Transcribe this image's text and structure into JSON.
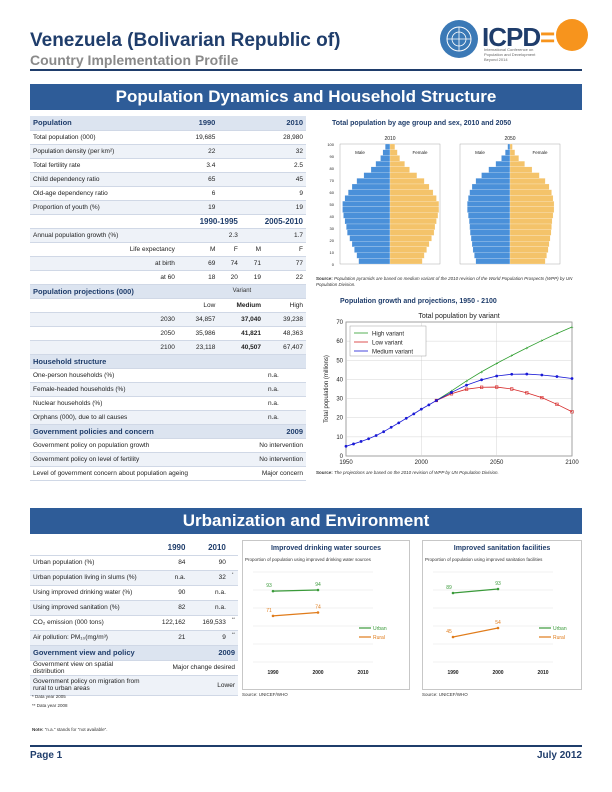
{
  "header": {
    "title": "Venezuela (Bolivarian Republic of)",
    "subtitle": "Country Implementation Profile",
    "logo_text": "ICPD",
    "logo_eq": "=",
    "logo_sub": "International Conference on Population and Development Beyond 2014"
  },
  "section1": {
    "title": "Population Dynamics and Household Structure"
  },
  "section2": {
    "title": "Urbanization and Environment"
  },
  "population": {
    "header": "Population",
    "col1": "1990",
    "col2": "2010",
    "rows": [
      {
        "label": "Total population (000)",
        "v1": "19,685",
        "v2": "28,980"
      },
      {
        "label": "Population density (per km²)",
        "v1": "22",
        "v2": "32"
      },
      {
        "label": "Total fertility rate",
        "v1": "3.4",
        "v2": "2.5"
      },
      {
        "label": "Child dependency ratio",
        "v1": "65",
        "v2": "45"
      },
      {
        "label": "Old-age dependency ratio",
        "v1": "6",
        "v2": "9"
      },
      {
        "label": "Proportion of youth (%)",
        "v1": "19",
        "v2": "19"
      }
    ],
    "period1": "1990-1995",
    "period2": "2005-2010",
    "growth_label": "Annual population growth (%)",
    "growth_v1": "2.3",
    "growth_v2": "1.7",
    "le_label": "Life expectancy",
    "le_m": "M",
    "le_f": "F",
    "le_rows": [
      {
        "label": "at birth",
        "v": [
          "69",
          "74",
          "71",
          "77"
        ]
      },
      {
        "label": "at 60",
        "v": [
          "18",
          "20",
          "19",
          "22"
        ]
      }
    ]
  },
  "projections": {
    "header": "Population projections (000)",
    "variant": "Variant",
    "low": "Low",
    "medium": "Medium",
    "high": "High",
    "rows": [
      {
        "year": "2030",
        "low": "34,857",
        "medium": "37,040",
        "high": "39,238"
      },
      {
        "year": "2050",
        "low": "35,986",
        "medium": "41,821",
        "high": "48,363"
      },
      {
        "year": "2100",
        "low": "23,118",
        "medium": "40,507",
        "high": "67,407"
      }
    ]
  },
  "household": {
    "header": "Household structure",
    "rows": [
      {
        "label": "One-person households (%)",
        "v": "n.a."
      },
      {
        "label": "Female-headed households (%)",
        "v": "n.a."
      },
      {
        "label": "Nuclear households (%)",
        "v": "n.a."
      },
      {
        "label": "Orphans (000), due to all causes",
        "v": "n.a."
      }
    ]
  },
  "policies": {
    "header": "Government policies and concern",
    "year": "2009",
    "rows": [
      {
        "label": "Government policy on population growth",
        "v": "No intervention"
      },
      {
        "label": "Government policy on level of fertility",
        "v": "No intervention"
      },
      {
        "label": "Level of government concern about population ageing",
        "v": "Major concern"
      }
    ]
  },
  "pyramid": {
    "title": "Total population by age group and sex, 2010 and 2050",
    "years": [
      "2010",
      "2050"
    ],
    "male": "Male",
    "female": "Female",
    "age_ticks": [
      "100",
      "90",
      "80",
      "70",
      "60",
      "50",
      "40",
      "30",
      "20",
      "10",
      "0"
    ],
    "source_bold": "Source:",
    "source": "Population pyramids are based on medium variant of the 2010 revision of the World Population Prospects (WPP) by UN Population Division."
  },
  "growth_chart": {
    "title": "Population growth and projections, 1950 - 2100",
    "subtitle": "Total population by variant",
    "ylabel": "Total population (millions)",
    "source_bold": "Source:",
    "source": "The projections are based on the 2010 revision of WPP by UN Population Division."
  },
  "chart_data": [
    {
      "type": "line",
      "title": "Population growth and projections, 1950 - 2100",
      "subtitle": "Total population by variant",
      "xlabel": "",
      "ylabel": "Total population (millions)",
      "xlim": [
        1950,
        2100
      ],
      "ylim": [
        0,
        70
      ],
      "xticks": [
        1950,
        2000,
        2050,
        2100
      ],
      "yticks": [
        0,
        10,
        20,
        30,
        40,
        50,
        60,
        70
      ],
      "legend": "top-left",
      "series": [
        {
          "name": "High variant",
          "color": "#2e9e2e",
          "x": [
            2010,
            2020,
            2030,
            2040,
            2050,
            2060,
            2070,
            2080,
            2090,
            2100
          ],
          "y": [
            29,
            34,
            39.2,
            44,
            48.4,
            52.5,
            56.5,
            60.3,
            64,
            67.4
          ]
        },
        {
          "name": "Low variant",
          "color": "#d62828",
          "x": [
            2010,
            2020,
            2030,
            2040,
            2050,
            2060,
            2070,
            2080,
            2090,
            2100
          ],
          "y": [
            29,
            32.5,
            34.9,
            35.9,
            36,
            35,
            33,
            30.5,
            27,
            23.1
          ]
        },
        {
          "name": "Medium variant",
          "color": "#1a1ad6",
          "x": [
            1950,
            1955,
            1960,
            1965,
            1970,
            1975,
            1980,
            1985,
            1990,
            1995,
            2000,
            2005,
            2010,
            2020,
            2030,
            2040,
            2050,
            2060,
            2070,
            2080,
            2090,
            2100
          ],
          "y": [
            5.1,
            6.3,
            7.6,
            9,
            10.7,
            12.7,
            15,
            17.3,
            19.7,
            22,
            24.5,
            26.7,
            29,
            33.2,
            37,
            39.8,
            41.8,
            42.7,
            42.8,
            42.3,
            41.5,
            40.5
          ]
        }
      ]
    },
    {
      "type": "line",
      "title": "Improved drinking water sources",
      "subtitle": "Proportion of population using improved drinking water sources",
      "xticks": [
        "1990",
        "2000",
        "2010"
      ],
      "legend": "right",
      "series": [
        {
          "name": "Urban",
          "color": "#3a9a3a",
          "x": [
            1990,
            2000
          ],
          "y": [
            93,
            94
          ]
        },
        {
          "name": "Rural",
          "color": "#e07b1a",
          "x": [
            1990,
            2000
          ],
          "y": [
            71,
            74
          ]
        }
      ]
    },
    {
      "type": "line",
      "title": "Improved sanitation facilities",
      "subtitle": "Proportion of population using improved sanitation facilities",
      "xticks": [
        "1990",
        "2000",
        "2010"
      ],
      "legend": "right",
      "series": [
        {
          "name": "Urban",
          "color": "#3a9a3a",
          "x": [
            1990,
            2000
          ],
          "y": [
            89,
            93
          ]
        },
        {
          "name": "Rural",
          "color": "#e07b1a",
          "x": [
            1990,
            2000
          ],
          "y": [
            45,
            54
          ]
        }
      ]
    }
  ],
  "water_chart": {
    "title": "Improved drinking water sources",
    "subtitle": "Proportion of population using improved drinking water sources",
    "source": "Source: UNICEF/WHO"
  },
  "sanitation_chart": {
    "title": "Improved sanitation facilities",
    "subtitle": "Proportion of population using improved sanitation facilities",
    "source": "Source: UNICEF/WHO"
  },
  "urban": {
    "col1": "1990",
    "col2": "2010",
    "rows": [
      {
        "label": "Urban population (%)",
        "v1": "84",
        "v2": "90",
        "note": ""
      },
      {
        "label": "Urban population living in slums (%)",
        "v1": "n.a.",
        "v2": "32",
        "note": "*"
      },
      {
        "label": "Using improved drinking water (%)",
        "v1": "90",
        "v2": "n.a.",
        "note": ""
      },
      {
        "label": "Using improved sanitation (%)",
        "v1": "82",
        "v2": "n.a.",
        "note": ""
      },
      {
        "label": "CO₂ emission (000 tons)",
        "v1": "122,162",
        "v2": "169,533",
        "note": "**"
      },
      {
        "label": "Air pollution: PM₁₀(mg/m³)",
        "v1": "21",
        "v2": "9",
        "note": "**"
      }
    ],
    "view_header": "Government view and policy",
    "view_year": "2009",
    "view_rows": [
      {
        "label": "Government view on spatial distribution",
        "v": "Major change desired"
      },
      {
        "label": "Government policy on migration from rural to urban areas",
        "v": "Lower"
      }
    ],
    "notes": [
      "* Data year 2005",
      "** Data year 2008"
    ],
    "na_note_bold": "Note:",
    "na_note": "\"n.a.\" stands for \"not available\"."
  },
  "footer": {
    "page": "Page 1",
    "date": "July 2012"
  }
}
